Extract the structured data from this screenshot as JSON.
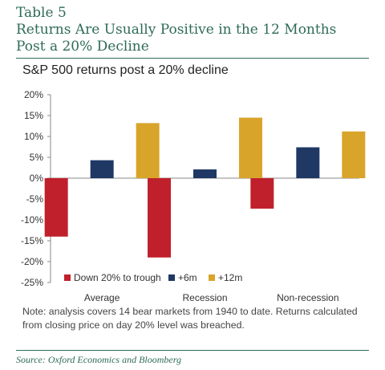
{
  "header": {
    "table_label": "Table 5",
    "title": "Returns Are Usually Positive in the 12 Months Post a 20% Decline"
  },
  "chart_data": {
    "type": "bar",
    "title": "S&P 500 returns post a 20% decline",
    "categories": [
      "Average",
      "Recession",
      "Non-recession"
    ],
    "series": [
      {
        "name": "Down 20% to trough",
        "values": [
          -14,
          -19,
          -7.3
        ],
        "color": "#c0202b"
      },
      {
        "name": "+6m",
        "values": [
          4.3,
          2.1,
          7.4
        ],
        "color": "#1f3864"
      },
      {
        "name": "+12m",
        "values": [
          13.2,
          14.5,
          11.2
        ],
        "color": "#d9a42a"
      }
    ],
    "ylim": [
      -25,
      20
    ],
    "yticks": [
      "-25%",
      "-20%",
      "-15%",
      "-10%",
      "-5%",
      "0%",
      "5%",
      "10%",
      "15%",
      "20%"
    ],
    "ytick_values": [
      -25,
      -20,
      -15,
      -10,
      -5,
      0,
      5,
      10,
      15,
      20
    ],
    "legend_position": "bottom",
    "grid": false
  },
  "note": "Note: analysis covers 14 bear markets from 1940 to date. Returns calculated from closing price on day 20% level was breached.",
  "source": "Source:  Oxford Economics and Bloomberg"
}
